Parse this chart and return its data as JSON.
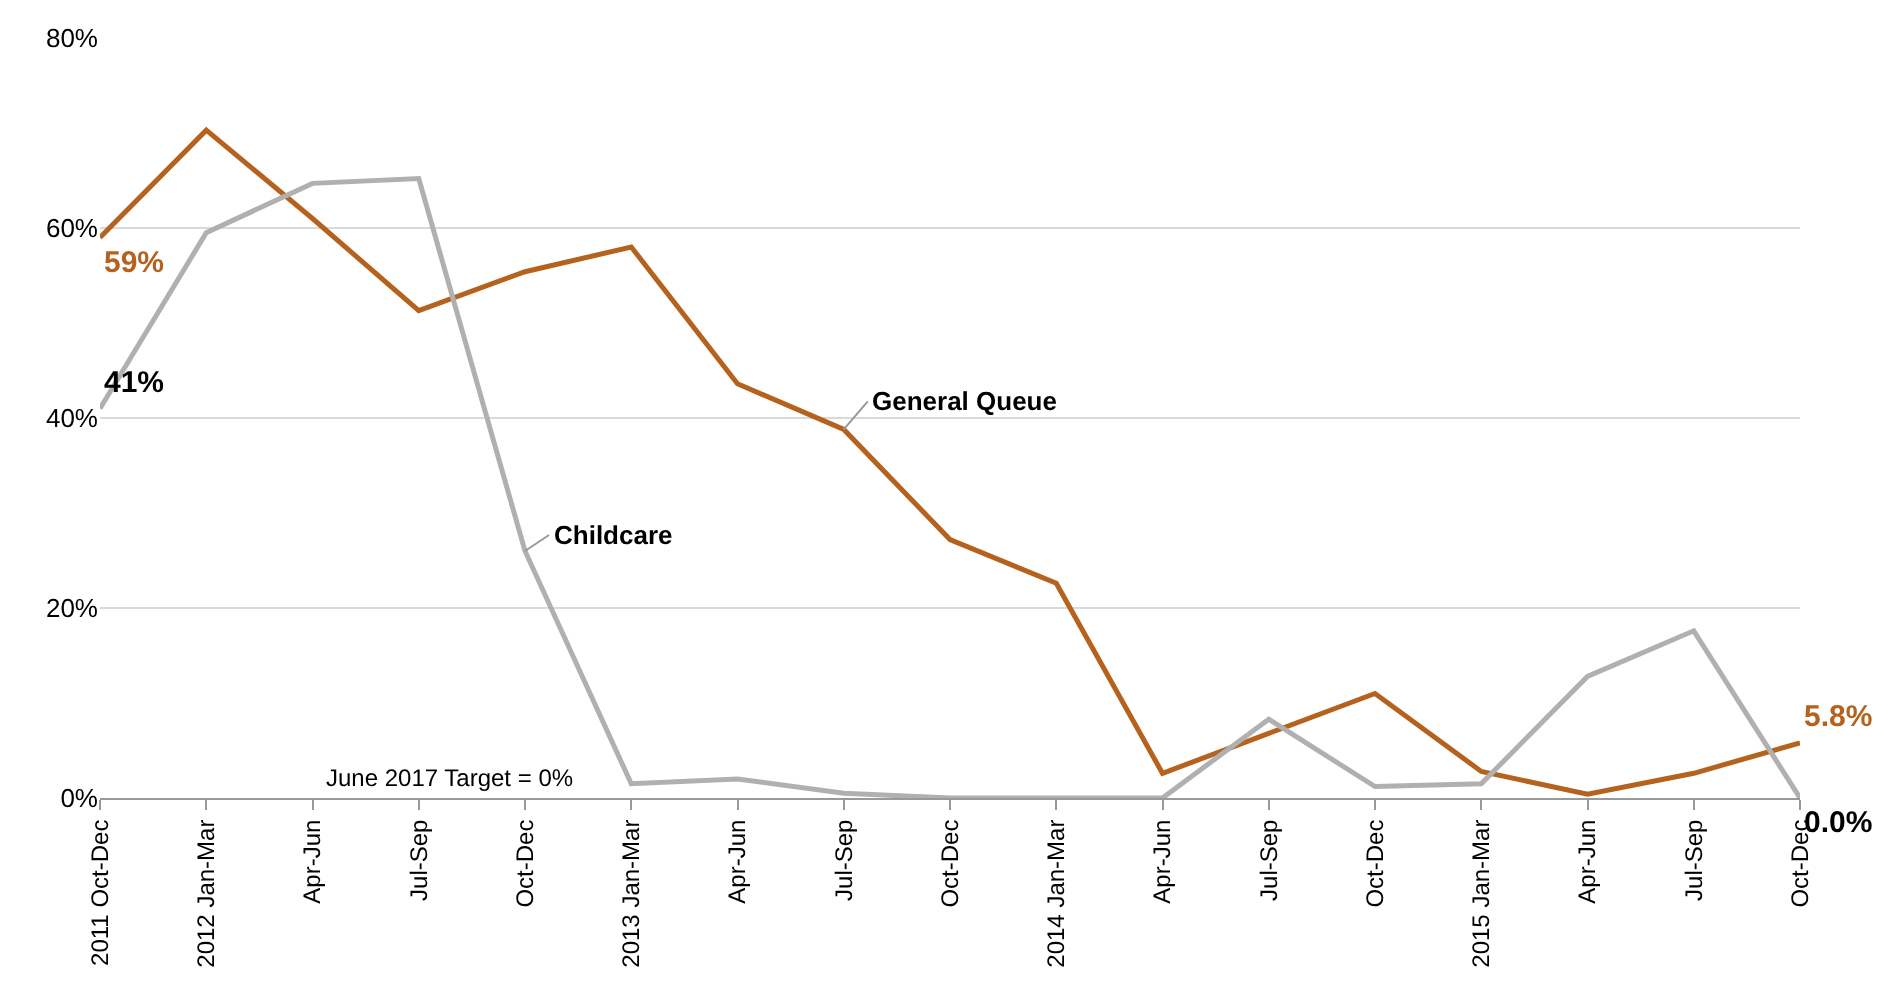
{
  "chart_data": {
    "type": "line",
    "categories": [
      "2011 Oct-Dec",
      "2012 Jan-Mar",
      "Apr-Jun",
      "Jul-Sep",
      "Oct-Dec",
      "2013 Jan-Mar",
      "Apr-Jun",
      "Jul-Sep",
      "Oct-Dec",
      "2014 Jan-Mar",
      "Apr-Jun",
      "Jul-Sep",
      "Oct-Dec",
      "2015 Jan-Mar",
      "Apr-Jun",
      "Jul-Sep",
      "Oct-Dec"
    ],
    "series": [
      {
        "name": "General Queue",
        "color": "#b5621e",
        "values": [
          59,
          70.3,
          61,
          51.3,
          55.4,
          58,
          43.6,
          38.8,
          27.2,
          22.6,
          2.6,
          6.8,
          11,
          2.8,
          0.4,
          2.6,
          5.8
        ],
        "value_labels": [
          "59%",
          null,
          null,
          null,
          null,
          null,
          null,
          null,
          null,
          null,
          null,
          null,
          null,
          null,
          null,
          null,
          "5.8%"
        ]
      },
      {
        "name": "Childcare",
        "color": "#b0b0b0",
        "values": [
          41,
          59.5,
          64.7,
          65.2,
          26,
          1.5,
          2,
          0.5,
          0,
          0,
          0,
          8.3,
          1.2,
          1.5,
          12.8,
          17.6,
          0.0
        ],
        "value_labels": [
          "41%",
          null,
          null,
          null,
          null,
          null,
          null,
          null,
          null,
          null,
          null,
          null,
          null,
          null,
          null,
          null,
          "0.0%"
        ]
      }
    ],
    "ylim": [
      0,
      80
    ],
    "yticks": [
      {
        "value": 0,
        "label": "0%"
      },
      {
        "value": 20,
        "label": "20%"
      },
      {
        "value": 40,
        "label": "40%"
      },
      {
        "value": 60,
        "label": "60%"
      },
      {
        "value": 80,
        "label": "80%"
      }
    ],
    "grid": "y",
    "legend": false,
    "marker": "none",
    "line_style": "solid",
    "annotations": [
      "June 2017 Target = 0%"
    ]
  }
}
